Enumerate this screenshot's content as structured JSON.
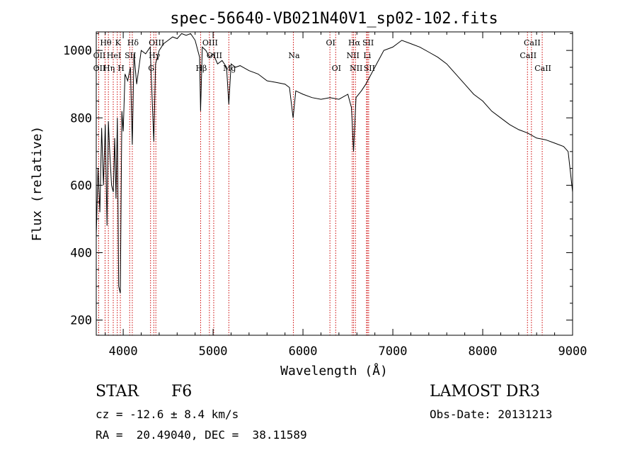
{
  "chart_data": {
    "type": "line",
    "title": "spec-56640-VB021N40V1_sp02-102.fits",
    "xlabel": "Wavelength (Å)",
    "ylabel": "Flux (relative)",
    "xlim": [
      3700,
      9000
    ],
    "ylim": [
      155,
      1055
    ],
    "xticks": [
      4000,
      5000,
      6000,
      7000,
      8000,
      9000
    ],
    "yticks": [
      200,
      400,
      600,
      800,
      1000
    ],
    "grid": false,
    "series": [
      {
        "name": "flux",
        "x": [
          3700,
          3720,
          3740,
          3760,
          3780,
          3800,
          3820,
          3835,
          3850,
          3870,
          3890,
          3905,
          3920,
          3935,
          3950,
          3968,
          3985,
          4000,
          4020,
          4050,
          4080,
          4101,
          4120,
          4150,
          4200,
          4250,
          4300,
          4340,
          4360,
          4400,
          4450,
          4500,
          4550,
          4600,
          4650,
          4700,
          4750,
          4800,
          4850,
          4861,
          4880,
          4920,
          4960,
          5000,
          5050,
          5100,
          5150,
          5175,
          5200,
          5250,
          5300,
          5400,
          5500,
          5600,
          5700,
          5800,
          5850,
          5890,
          5920,
          6000,
          6100,
          6200,
          6300,
          6400,
          6500,
          6540,
          6563,
          6590,
          6650,
          6700,
          6800,
          6900,
          7000,
          7100,
          7200,
          7300,
          7400,
          7500,
          7600,
          7700,
          7800,
          7900,
          8000,
          8100,
          8200,
          8300,
          8400,
          8500,
          8600,
          8700,
          8800,
          8900,
          8950,
          9000
        ],
        "values": [
          450,
          650,
          520,
          770,
          600,
          780,
          480,
          790,
          700,
          600,
          580,
          740,
          560,
          800,
          300,
          280,
          820,
          760,
          930,
          910,
          950,
          720,
          990,
          900,
          1000,
          990,
          1010,
          730,
          960,
          1000,
          1020,
          1030,
          1040,
          1035,
          1050,
          1045,
          1050,
          1030,
          980,
          820,
          1010,
          1000,
          980,
          990,
          960,
          970,
          950,
          840,
          960,
          950,
          955,
          940,
          930,
          910,
          905,
          900,
          890,
          800,
          880,
          870,
          860,
          855,
          860,
          855,
          870,
          830,
          700,
          860,
          880,
          900,
          950,
          1000,
          1010,
          1030,
          1020,
          1010,
          995,
          980,
          960,
          930,
          900,
          870,
          850,
          820,
          800,
          780,
          765,
          755,
          740,
          735,
          725,
          715,
          700,
          580
        ]
      }
    ],
    "lines": [
      {
        "label": "Hθ",
        "wave": 3798,
        "row": 0
      },
      {
        "label": "OII",
        "wave": 3727,
        "row": 1
      },
      {
        "label": "OII",
        "wave": 3727,
        "row": 2
      },
      {
        "label": "Hη",
        "wave": 3835,
        "row": 2
      },
      {
        "label": "HeI",
        "wave": 3889,
        "row": 1
      },
      {
        "label": "K",
        "wave": 3934,
        "row": 0
      },
      {
        "label": "SII",
        "wave": 4072,
        "row": 1
      },
      {
        "label": "H",
        "wave": 3968,
        "row": 2
      },
      {
        "label": "Hδ",
        "wave": 4101,
        "row": 0
      },
      {
        "label": "OIII",
        "wave": 4363,
        "row": 0
      },
      {
        "label": "Hγ",
        "wave": 4340,
        "row": 1
      },
      {
        "label": "G",
        "wave": 4304,
        "row": 2
      },
      {
        "label": "Hβ",
        "wave": 4861,
        "row": 2
      },
      {
        "label": "OIII",
        "wave": 4959,
        "row": 0
      },
      {
        "label": "OIII",
        "wave": 5007,
        "row": 1
      },
      {
        "label": "Mg",
        "wave": 5175,
        "row": 2
      },
      {
        "label": "Na",
        "wave": 5893,
        "row": 1
      },
      {
        "label": "OI",
        "wave": 6300,
        "row": 0
      },
      {
        "label": "OI",
        "wave": 6364,
        "row": 2
      },
      {
        "label": "Hα",
        "wave": 6563,
        "row": 0
      },
      {
        "label": "NII",
        "wave": 6548,
        "row": 1
      },
      {
        "label": "NII",
        "wave": 6584,
        "row": 2
      },
      {
        "label": "SII",
        "wave": 6717,
        "row": 0
      },
      {
        "label": "Li",
        "wave": 6707,
        "row": 1
      },
      {
        "label": "SII",
        "wave": 6731,
        "row": 2
      },
      {
        "label": "CaII",
        "wave": 8542,
        "row": 0
      },
      {
        "label": "CaII",
        "wave": 8498,
        "row": 1
      },
      {
        "label": "CaII",
        "wave": 8662,
        "row": 2
      }
    ]
  },
  "info": {
    "obj_class": "STAR",
    "subclass": "F6",
    "cz": "cz = -12.6 ± 8.4 km/s",
    "radec": "RA =  20.49040, DEC =  38.11589",
    "survey": "LAMOST DR3",
    "obs_date": "Obs-Date: 20131213"
  },
  "colors": {
    "line_marker": "#cc0000",
    "spectrum": "#000000"
  }
}
